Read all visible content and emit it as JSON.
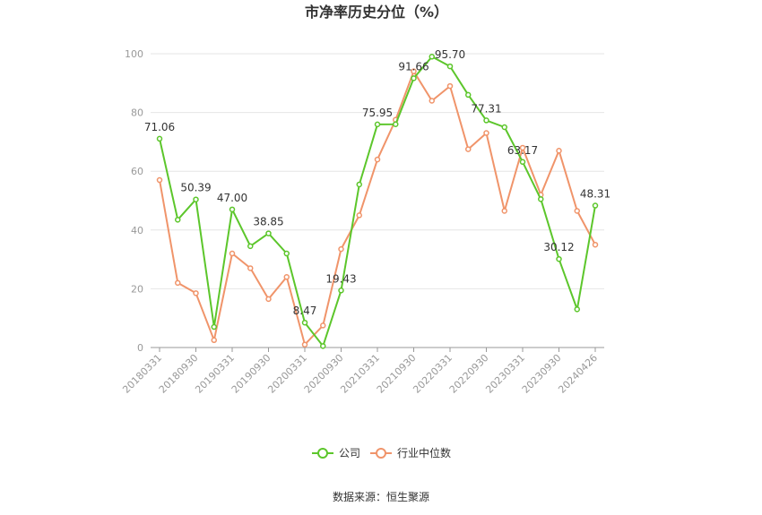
{
  "chart_data": {
    "type": "line",
    "title": "市净率历史分位（%）",
    "xlabel": "",
    "ylabel": "",
    "ylim": [
      0,
      100
    ],
    "yticks": [
      0,
      20,
      40,
      60,
      80,
      100
    ],
    "grid": true,
    "legend_position": "bottom",
    "x": [
      "20180331",
      "20180630",
      "20180930",
      "20181231",
      "20190331",
      "20190630",
      "20190930",
      "20191231",
      "20200331",
      "20200630",
      "20200930",
      "20201231",
      "20210331",
      "20210630",
      "20210930",
      "20211231",
      "20220331",
      "20220630",
      "20220930",
      "20221231",
      "20230331",
      "20230630",
      "20230930",
      "20231231",
      "20240426"
    ],
    "xtick_labels": [
      "20180331",
      "20180930",
      "20190331",
      "20190930",
      "20200331",
      "20200930",
      "20210331",
      "20210930",
      "20220331",
      "20220930",
      "20230331",
      "20230930",
      "20240426"
    ],
    "series": [
      {
        "name": "公司",
        "color": "#5cc62b",
        "values": [
          71.06,
          43.5,
          50.39,
          7.0,
          47.0,
          34.5,
          38.85,
          32.0,
          8.47,
          0.5,
          19.43,
          55.5,
          75.95,
          76.0,
          91.66,
          99.0,
          95.7,
          86.0,
          77.31,
          75.0,
          63.17,
          50.5,
          30.12,
          13.0,
          48.31
        ],
        "labels": {
          "0": "71.06",
          "2": "50.39",
          "4": "47.00",
          "6": "38.85",
          "8": "8.47",
          "10": "19.43",
          "12": "75.95",
          "14": "91.66",
          "16": "95.70",
          "18": "77.31",
          "20": "63.17",
          "22": "30.12",
          "24": "48.31"
        }
      },
      {
        "name": "行业中位数",
        "color": "#f0946a",
        "values": [
          57.0,
          22.0,
          18.5,
          2.5,
          32.0,
          27.0,
          16.5,
          24.0,
          1.0,
          7.5,
          33.5,
          45.0,
          64.0,
          77.5,
          94.0,
          84.0,
          89.0,
          67.5,
          73.0,
          46.5,
          68.0,
          52.0,
          67.0,
          46.5,
          35.0
        ]
      }
    ],
    "source": "数据来源：恒生聚源"
  }
}
